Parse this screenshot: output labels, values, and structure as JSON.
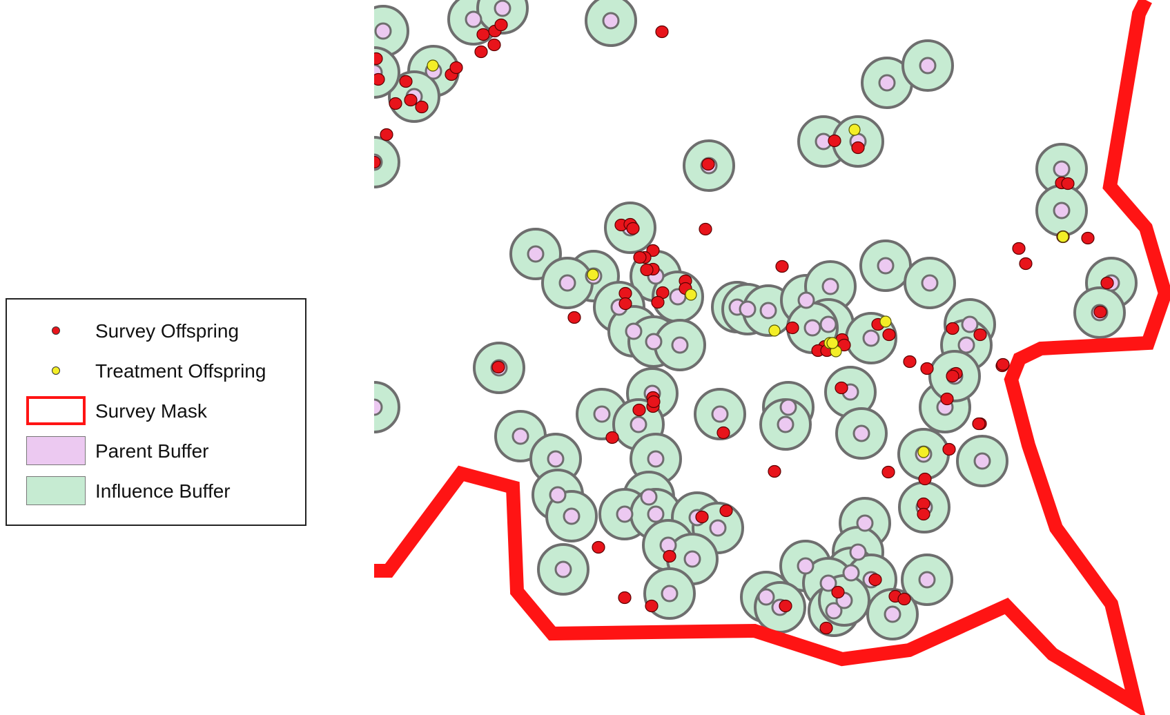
{
  "legend": {
    "items": [
      {
        "key": "survey_offspring",
        "label": "Survey Offspring",
        "symbol": "red-dot-icon"
      },
      {
        "key": "treatment_offspring",
        "label": "Treatment Offspring",
        "symbol": "yellow-dot-icon"
      },
      {
        "key": "survey_mask",
        "label": "Survey Mask",
        "symbol": "red-outline-box"
      },
      {
        "key": "parent_buffer",
        "label": "Parent Buffer",
        "symbol": "lavender-box"
      },
      {
        "key": "influence_buffer",
        "label": "Influence Buffer",
        "symbol": "green-box"
      }
    ]
  },
  "colors": {
    "survey_offspring": "#e8141b",
    "treatment_offspring": "#f4ee27",
    "survey_mask": "#ff1414",
    "parent_buffer": "#ecc9f1",
    "influence_buffer": "#c6ebd2",
    "buffer_outline": "#6e6e6e"
  }
}
